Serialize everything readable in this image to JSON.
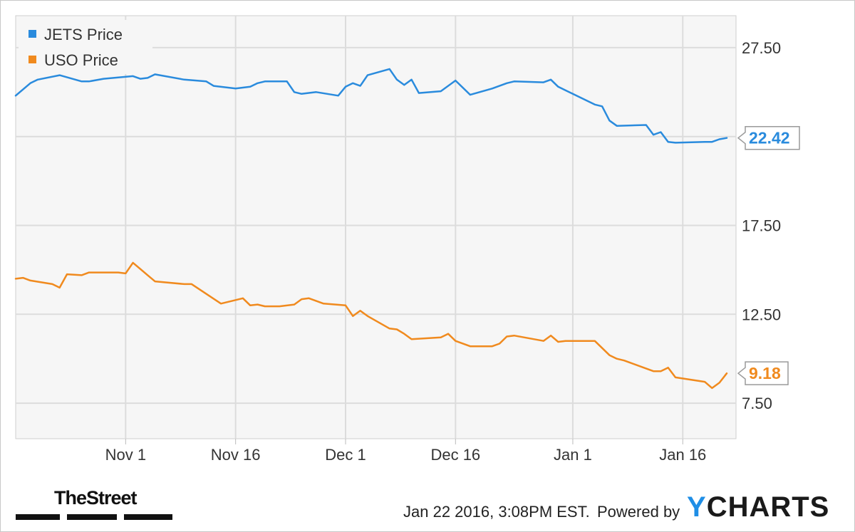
{
  "chart_data": {
    "type": "line",
    "title": "",
    "xlabel": "",
    "ylabel": "",
    "x_ticks": [
      "Nov 1",
      "Nov 16",
      "Dec 1",
      "Dec 16",
      "Jan 1",
      "Jan 16"
    ],
    "y_ticks": [
      "7.50",
      "12.50",
      "17.50",
      "27.50"
    ],
    "ylim": [
      5.5,
      29.3
    ],
    "x_range": [
      "2015-10-17",
      "2016-01-22"
    ],
    "grid": true,
    "legend_position": "top-left",
    "series": [
      {
        "name": "JETS Price",
        "color": "#2a8bdd",
        "last_value_label": "22.42",
        "points": [
          [
            "2015-10-17",
            24.8
          ],
          [
            "2015-10-19",
            25.5
          ],
          [
            "2015-10-20",
            25.7
          ],
          [
            "2015-10-23",
            25.95
          ],
          [
            "2015-10-26",
            25.6
          ],
          [
            "2015-10-27",
            25.6
          ],
          [
            "2015-10-29",
            25.75
          ],
          [
            "2015-11-02",
            25.9
          ],
          [
            "2015-11-03",
            25.75
          ],
          [
            "2015-11-04",
            25.8
          ],
          [
            "2015-11-05",
            26.0
          ],
          [
            "2015-11-09",
            25.7
          ],
          [
            "2015-11-12",
            25.6
          ],
          [
            "2015-11-13",
            25.35
          ],
          [
            "2015-11-16",
            25.2
          ],
          [
            "2015-11-18",
            25.3
          ],
          [
            "2015-11-19",
            25.5
          ],
          [
            "2015-11-20",
            25.6
          ],
          [
            "2015-11-23",
            25.6
          ],
          [
            "2015-11-24",
            25.0
          ],
          [
            "2015-11-25",
            24.9
          ],
          [
            "2015-11-27",
            25.0
          ],
          [
            "2015-11-30",
            24.8
          ],
          [
            "2015-12-01",
            25.3
          ],
          [
            "2015-12-02",
            25.5
          ],
          [
            "2015-12-03",
            25.35
          ],
          [
            "2015-12-04",
            25.95
          ],
          [
            "2015-12-07",
            26.3
          ],
          [
            "2015-12-08",
            25.7
          ],
          [
            "2015-12-09",
            25.4
          ],
          [
            "2015-12-10",
            25.7
          ],
          [
            "2015-12-11",
            24.95
          ],
          [
            "2015-12-14",
            25.05
          ],
          [
            "2015-12-16",
            25.65
          ],
          [
            "2015-12-18",
            24.85
          ],
          [
            "2015-12-21",
            25.2
          ],
          [
            "2015-12-23",
            25.5
          ],
          [
            "2015-12-24",
            25.6
          ],
          [
            "2015-12-28",
            25.55
          ],
          [
            "2015-12-29",
            25.7
          ],
          [
            "2015-12-30",
            25.3
          ],
          [
            "2016-01-01",
            24.9
          ],
          [
            "2016-01-04",
            24.3
          ],
          [
            "2016-01-05",
            24.2
          ],
          [
            "2016-01-06",
            23.4
          ],
          [
            "2016-01-07",
            23.1
          ],
          [
            "2016-01-11",
            23.15
          ],
          [
            "2016-01-12",
            22.6
          ],
          [
            "2016-01-13",
            22.75
          ],
          [
            "2016-01-14",
            22.2
          ],
          [
            "2016-01-15",
            22.15
          ],
          [
            "2016-01-19",
            22.2
          ],
          [
            "2016-01-20",
            22.2
          ],
          [
            "2016-01-21",
            22.35
          ],
          [
            "2016-01-22",
            22.42
          ]
        ]
      },
      {
        "name": "USO Price",
        "color": "#f08a1e",
        "last_value_label": "9.18",
        "points": [
          [
            "2015-10-17",
            14.5
          ],
          [
            "2015-10-18",
            14.55
          ],
          [
            "2015-10-19",
            14.4
          ],
          [
            "2015-10-22",
            14.2
          ],
          [
            "2015-10-23",
            14.0
          ],
          [
            "2015-10-24",
            14.75
          ],
          [
            "2015-10-26",
            14.7
          ],
          [
            "2015-10-27",
            14.85
          ],
          [
            "2015-10-31",
            14.85
          ],
          [
            "2015-11-01",
            14.8
          ],
          [
            "2015-11-02",
            15.4
          ],
          [
            "2015-11-04",
            14.7
          ],
          [
            "2015-11-05",
            14.35
          ],
          [
            "2015-11-09",
            14.2
          ],
          [
            "2015-11-10",
            14.2
          ],
          [
            "2015-11-14",
            13.1
          ],
          [
            "2015-11-16",
            13.3
          ],
          [
            "2015-11-17",
            13.4
          ],
          [
            "2015-11-18",
            13.0
          ],
          [
            "2015-11-19",
            13.05
          ],
          [
            "2015-11-20",
            12.95
          ],
          [
            "2015-11-22",
            12.95
          ],
          [
            "2015-11-24",
            13.05
          ],
          [
            "2015-11-25",
            13.35
          ],
          [
            "2015-11-26",
            13.4
          ],
          [
            "2015-11-28",
            13.1
          ],
          [
            "2015-12-01",
            13.0
          ],
          [
            "2015-12-02",
            12.4
          ],
          [
            "2015-12-03",
            12.7
          ],
          [
            "2015-12-04",
            12.4
          ],
          [
            "2015-12-07",
            11.7
          ],
          [
            "2015-12-08",
            11.65
          ],
          [
            "2015-12-09",
            11.4
          ],
          [
            "2015-12-10",
            11.1
          ],
          [
            "2015-12-14",
            11.2
          ],
          [
            "2015-12-15",
            11.4
          ],
          [
            "2015-12-16",
            11.0
          ],
          [
            "2015-12-18",
            10.7
          ],
          [
            "2015-12-21",
            10.7
          ],
          [
            "2015-12-22",
            10.85
          ],
          [
            "2015-12-23",
            11.25
          ],
          [
            "2015-12-24",
            11.3
          ],
          [
            "2015-12-28",
            11.0
          ],
          [
            "2015-12-29",
            11.3
          ],
          [
            "2015-12-30",
            10.95
          ],
          [
            "2015-12-31",
            11.0
          ],
          [
            "2016-01-04",
            11.0
          ],
          [
            "2016-01-05",
            10.6
          ],
          [
            "2016-01-06",
            10.2
          ],
          [
            "2016-01-07",
            10.0
          ],
          [
            "2016-01-08",
            9.9
          ],
          [
            "2016-01-11",
            9.45
          ],
          [
            "2016-01-12",
            9.3
          ],
          [
            "2016-01-13",
            9.3
          ],
          [
            "2016-01-14",
            9.5
          ],
          [
            "2016-01-15",
            8.95
          ],
          [
            "2016-01-19",
            8.7
          ],
          [
            "2016-01-20",
            8.35
          ],
          [
            "2016-01-21",
            8.65
          ],
          [
            "2016-01-22",
            9.18
          ]
        ]
      }
    ]
  },
  "x_tick_dates": [
    "2015-11-01",
    "2015-11-16",
    "2015-12-01",
    "2015-12-16",
    "2016-01-01",
    "2016-01-16"
  ],
  "y_tick_values": [
    7.5,
    12.5,
    17.5,
    27.5
  ],
  "footer": {
    "date_text": "Jan 22 2016, 3:08PM EST.",
    "powered_text": "Powered by",
    "brand_y": "Y",
    "brand_rest": "CHARTS",
    "publisher": "TheStreet"
  }
}
